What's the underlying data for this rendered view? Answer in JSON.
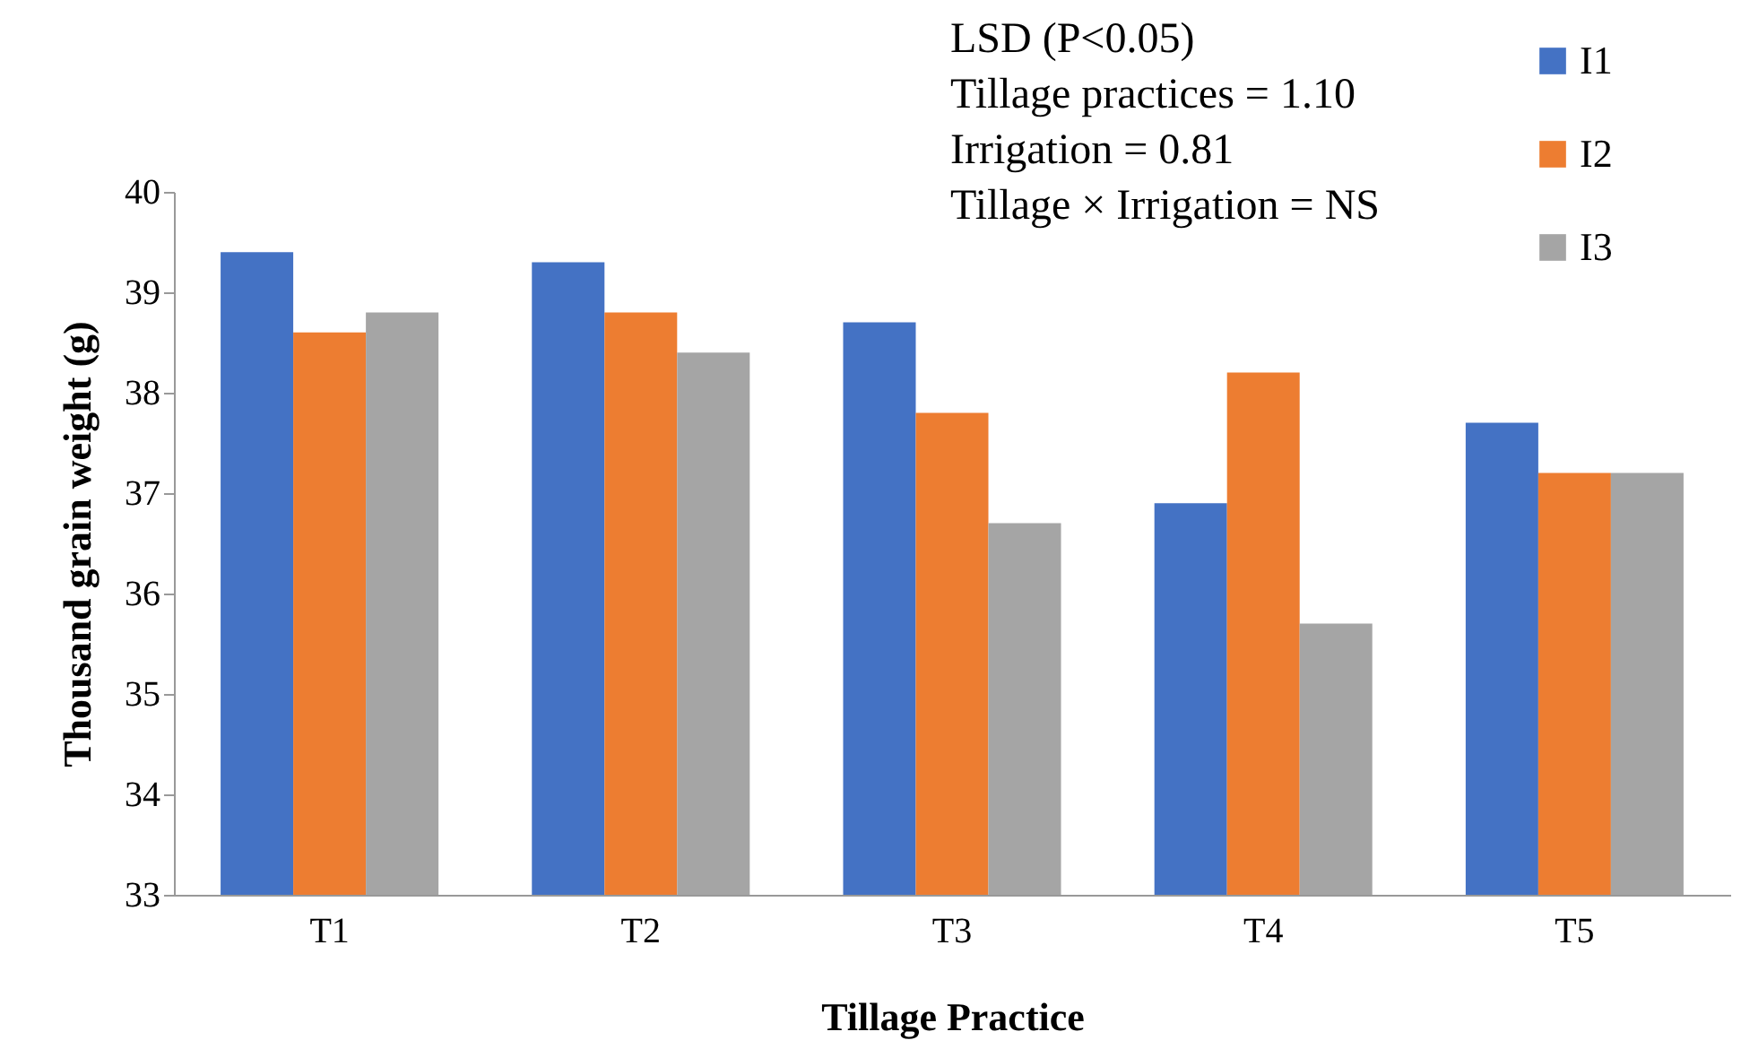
{
  "chart_data": {
    "type": "bar",
    "xlabel": "Tillage Practice",
    "ylabel": "Thousand grain weight (g)",
    "categories": [
      "T1",
      "T2",
      "T3",
      "T4",
      "T5"
    ],
    "series": [
      {
        "name": "I1",
        "color": "#4472c4",
        "values": [
          39.4,
          39.3,
          38.7,
          36.9,
          37.7
        ]
      },
      {
        "name": "I2",
        "color": "#ed7d31",
        "values": [
          38.6,
          38.8,
          37.8,
          38.2,
          37.2
        ]
      },
      {
        "name": "I3",
        "color": "#a5a5a5",
        "values": [
          38.8,
          38.4,
          36.7,
          35.7,
          37.2
        ]
      }
    ],
    "ylim": [
      33,
      40
    ],
    "yticks": [
      33,
      34,
      35,
      36,
      37,
      38,
      39,
      40
    ],
    "grid": false,
    "legend": "top right",
    "annotations": [
      "LSD (P<0.05)",
      "Tillage practices = 1.10",
      "Irrigation = 0.81",
      "Tillage × Irrigation = NS"
    ]
  }
}
